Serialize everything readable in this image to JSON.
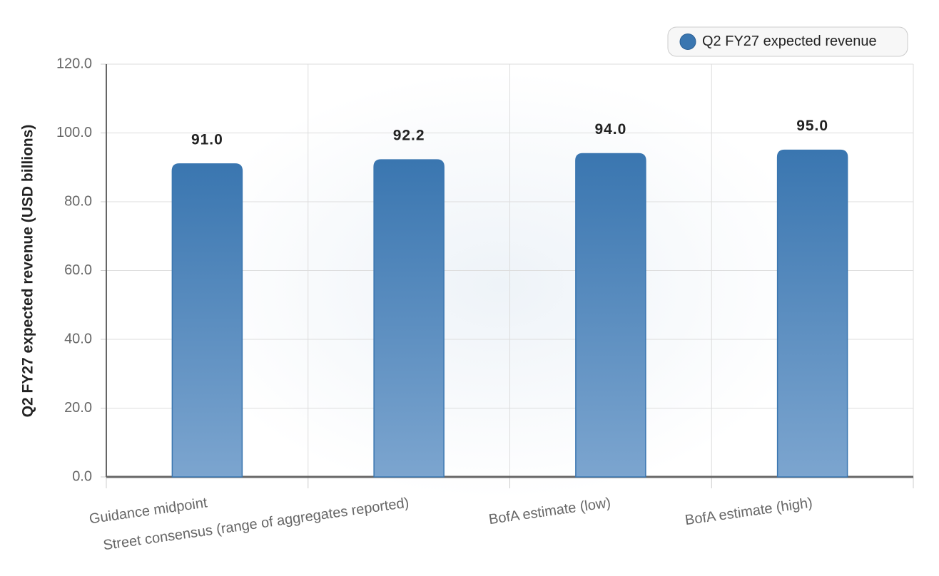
{
  "chart_data": {
    "type": "bar",
    "y_label": "Q2 FY27 expected revenue (USD billions)",
    "categories": [
      "Guidance midpoint",
      "Street consensus (range of aggregates reported)",
      "BofA estimate (low)",
      "BofA estimate (high)"
    ],
    "series": [
      {
        "name": "Q2 FY27 expected revenue",
        "color": "#3a76b0",
        "values": [
          91.0,
          92.2,
          94.0,
          95.0
        ],
        "value_labels": [
          "91.0",
          "92.2",
          "94.0",
          "95.0"
        ]
      }
    ],
    "ylim": [
      0,
      120
    ],
    "yticks": [
      {
        "value": 0,
        "label": "0.0"
      },
      {
        "value": 20,
        "label": "20.0"
      },
      {
        "value": 40,
        "label": "40.0"
      },
      {
        "value": 60,
        "label": "60.0"
      },
      {
        "value": 80,
        "label": "80.0"
      },
      {
        "value": 100,
        "label": "100.0"
      },
      {
        "value": 120,
        "label": "120.0"
      }
    ],
    "grid": true,
    "legend": "top-right"
  }
}
